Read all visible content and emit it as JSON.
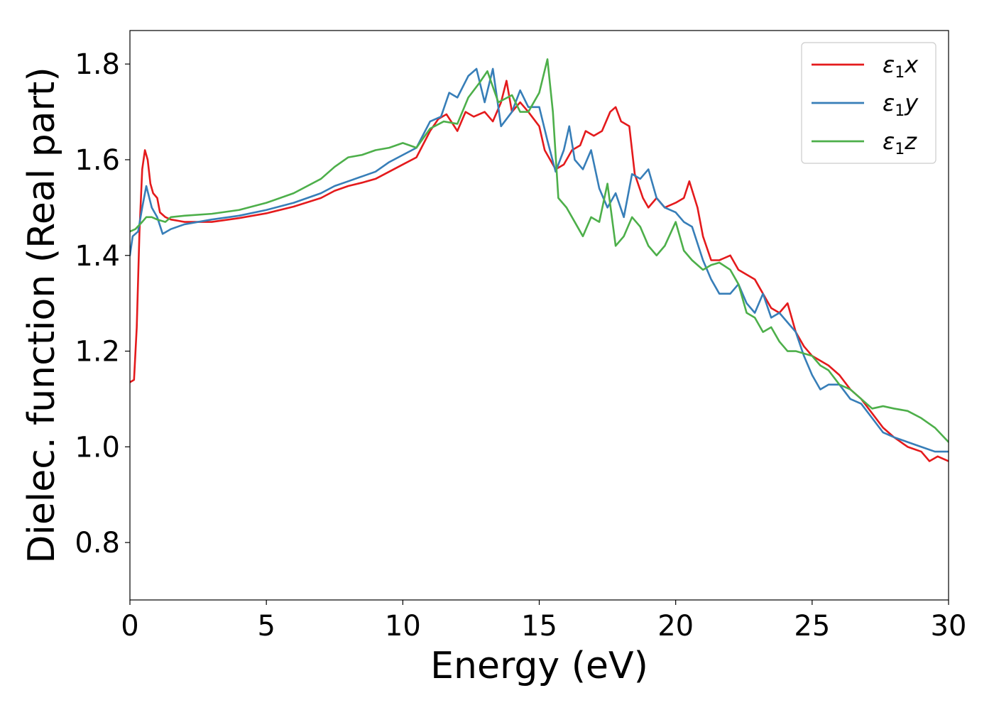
{
  "chart_data": {
    "type": "line",
    "xlabel": "Energy (eV)",
    "ylabel": "Dielec. function (Real part)",
    "xlim": [
      0,
      30
    ],
    "ylim": [
      0.68,
      1.87
    ],
    "xticks": [
      0,
      5,
      10,
      15,
      20,
      25,
      30
    ],
    "yticks": [
      0.8,
      1.0,
      1.2,
      1.4,
      1.6,
      1.8
    ],
    "xtick_labels": [
      "0",
      "5",
      "10",
      "15",
      "20",
      "25",
      "30"
    ],
    "ytick_labels": [
      "0.8",
      "1.0",
      "1.2",
      "1.4",
      "1.6",
      "1.8"
    ],
    "grid": false,
    "legend_position": "top-right",
    "series": [
      {
        "name": "ε1x",
        "legend_base": "ε",
        "legend_sub": "1",
        "legend_var": "x",
        "color": "#e41a1c",
        "points": [
          [
            0,
            1.135
          ],
          [
            0.15,
            1.14
          ],
          [
            0.25,
            1.25
          ],
          [
            0.35,
            1.45
          ],
          [
            0.45,
            1.58
          ],
          [
            0.55,
            1.62
          ],
          [
            0.65,
            1.6
          ],
          [
            0.75,
            1.55
          ],
          [
            0.85,
            1.53
          ],
          [
            1.0,
            1.52
          ],
          [
            1.1,
            1.49
          ],
          [
            1.3,
            1.48
          ],
          [
            1.5,
            1.475
          ],
          [
            2,
            1.47
          ],
          [
            3,
            1.47
          ],
          [
            4,
            1.478
          ],
          [
            5,
            1.488
          ],
          [
            6,
            1.502
          ],
          [
            7,
            1.52
          ],
          [
            7.5,
            1.535
          ],
          [
            8,
            1.545
          ],
          [
            8.5,
            1.552
          ],
          [
            9,
            1.56
          ],
          [
            9.5,
            1.575
          ],
          [
            10,
            1.59
          ],
          [
            10.5,
            1.605
          ],
          [
            11,
            1.66
          ],
          [
            11.3,
            1.685
          ],
          [
            11.6,
            1.695
          ],
          [
            12,
            1.66
          ],
          [
            12.3,
            1.7
          ],
          [
            12.6,
            1.69
          ],
          [
            13,
            1.7
          ],
          [
            13.3,
            1.68
          ],
          [
            13.6,
            1.72
          ],
          [
            13.8,
            1.765
          ],
          [
            14,
            1.7
          ],
          [
            14.3,
            1.72
          ],
          [
            14.6,
            1.7
          ],
          [
            15,
            1.67
          ],
          [
            15.2,
            1.62
          ],
          [
            15.4,
            1.6
          ],
          [
            15.6,
            1.58
          ],
          [
            15.9,
            1.59
          ],
          [
            16.2,
            1.62
          ],
          [
            16.5,
            1.63
          ],
          [
            16.7,
            1.66
          ],
          [
            17,
            1.65
          ],
          [
            17.3,
            1.66
          ],
          [
            17.6,
            1.7
          ],
          [
            17.8,
            1.71
          ],
          [
            18,
            1.68
          ],
          [
            18.3,
            1.67
          ],
          [
            18.5,
            1.57
          ],
          [
            18.8,
            1.52
          ],
          [
            19,
            1.5
          ],
          [
            19.3,
            1.52
          ],
          [
            19.6,
            1.5
          ],
          [
            20,
            1.51
          ],
          [
            20.3,
            1.52
          ],
          [
            20.5,
            1.555
          ],
          [
            20.8,
            1.5
          ],
          [
            21,
            1.44
          ],
          [
            21.3,
            1.39
          ],
          [
            21.6,
            1.39
          ],
          [
            22,
            1.4
          ],
          [
            22.3,
            1.37
          ],
          [
            22.6,
            1.36
          ],
          [
            22.9,
            1.35
          ],
          [
            23.2,
            1.32
          ],
          [
            23.5,
            1.29
          ],
          [
            23.8,
            1.28
          ],
          [
            24.1,
            1.3
          ],
          [
            24.4,
            1.24
          ],
          [
            24.7,
            1.21
          ],
          [
            25,
            1.19
          ],
          [
            25.3,
            1.18
          ],
          [
            25.6,
            1.17
          ],
          [
            26,
            1.15
          ],
          [
            26.4,
            1.12
          ],
          [
            26.8,
            1.1
          ],
          [
            27.2,
            1.07
          ],
          [
            27.6,
            1.04
          ],
          [
            28,
            1.02
          ],
          [
            28.5,
            1.0
          ],
          [
            29,
            0.99
          ],
          [
            29.3,
            0.97
          ],
          [
            29.6,
            0.98
          ],
          [
            30,
            0.97
          ]
        ]
      },
      {
        "name": "ε1y",
        "legend_base": "ε",
        "legend_sub": "1",
        "legend_var": "y",
        "color": "#377eb8",
        "points": [
          [
            0,
            1.4
          ],
          [
            0.1,
            1.44
          ],
          [
            0.3,
            1.45
          ],
          [
            0.45,
            1.5
          ],
          [
            0.6,
            1.545
          ],
          [
            0.8,
            1.5
          ],
          [
            1.0,
            1.48
          ],
          [
            1.2,
            1.445
          ],
          [
            1.5,
            1.455
          ],
          [
            2,
            1.465
          ],
          [
            3,
            1.475
          ],
          [
            4,
            1.483
          ],
          [
            5,
            1.495
          ],
          [
            6,
            1.51
          ],
          [
            7,
            1.53
          ],
          [
            7.5,
            1.545
          ],
          [
            8,
            1.555
          ],
          [
            8.5,
            1.565
          ],
          [
            9,
            1.575
          ],
          [
            9.5,
            1.595
          ],
          [
            10,
            1.61
          ],
          [
            10.5,
            1.625
          ],
          [
            11,
            1.68
          ],
          [
            11.4,
            1.69
          ],
          [
            11.7,
            1.74
          ],
          [
            12,
            1.73
          ],
          [
            12.4,
            1.775
          ],
          [
            12.7,
            1.79
          ],
          [
            13,
            1.72
          ],
          [
            13.3,
            1.79
          ],
          [
            13.6,
            1.67
          ],
          [
            14,
            1.7
          ],
          [
            14.3,
            1.745
          ],
          [
            14.6,
            1.71
          ],
          [
            15,
            1.71
          ],
          [
            15.3,
            1.64
          ],
          [
            15.6,
            1.575
          ],
          [
            15.9,
            1.62
          ],
          [
            16.1,
            1.67
          ],
          [
            16.3,
            1.6
          ],
          [
            16.6,
            1.58
          ],
          [
            16.9,
            1.62
          ],
          [
            17.2,
            1.54
          ],
          [
            17.5,
            1.5
          ],
          [
            17.8,
            1.53
          ],
          [
            18.1,
            1.48
          ],
          [
            18.4,
            1.57
          ],
          [
            18.7,
            1.56
          ],
          [
            19,
            1.58
          ],
          [
            19.3,
            1.52
          ],
          [
            19.6,
            1.5
          ],
          [
            20,
            1.49
          ],
          [
            20.3,
            1.47
          ],
          [
            20.6,
            1.46
          ],
          [
            21,
            1.39
          ],
          [
            21.3,
            1.35
          ],
          [
            21.6,
            1.32
          ],
          [
            22,
            1.32
          ],
          [
            22.3,
            1.34
          ],
          [
            22.6,
            1.3
          ],
          [
            22.9,
            1.28
          ],
          [
            23.2,
            1.32
          ],
          [
            23.5,
            1.27
          ],
          [
            23.8,
            1.28
          ],
          [
            24.1,
            1.26
          ],
          [
            24.4,
            1.24
          ],
          [
            24.7,
            1.19
          ],
          [
            25,
            1.15
          ],
          [
            25.3,
            1.12
          ],
          [
            25.6,
            1.13
          ],
          [
            26,
            1.13
          ],
          [
            26.4,
            1.1
          ],
          [
            26.8,
            1.09
          ],
          [
            27.2,
            1.06
          ],
          [
            27.6,
            1.03
          ],
          [
            28,
            1.02
          ],
          [
            28.5,
            1.01
          ],
          [
            29,
            1.0
          ],
          [
            29.5,
            0.99
          ],
          [
            30,
            0.99
          ]
        ]
      },
      {
        "name": "ε1z",
        "legend_base": "ε",
        "legend_sub": "1",
        "legend_var": "z",
        "color": "#4daf4a",
        "points": [
          [
            0,
            1.45
          ],
          [
            0.2,
            1.455
          ],
          [
            0.45,
            1.47
          ],
          [
            0.6,
            1.48
          ],
          [
            0.8,
            1.48
          ],
          [
            1.0,
            1.475
          ],
          [
            1.3,
            1.47
          ],
          [
            1.5,
            1.48
          ],
          [
            2,
            1.483
          ],
          [
            3,
            1.487
          ],
          [
            4,
            1.495
          ],
          [
            5,
            1.51
          ],
          [
            6,
            1.53
          ],
          [
            7,
            1.56
          ],
          [
            7.5,
            1.585
          ],
          [
            8,
            1.605
          ],
          [
            8.5,
            1.61
          ],
          [
            9,
            1.62
          ],
          [
            9.5,
            1.625
          ],
          [
            10,
            1.635
          ],
          [
            10.5,
            1.625
          ],
          [
            11,
            1.665
          ],
          [
            11.5,
            1.68
          ],
          [
            12,
            1.675
          ],
          [
            12.4,
            1.73
          ],
          [
            12.8,
            1.76
          ],
          [
            13.1,
            1.785
          ],
          [
            13.5,
            1.72
          ],
          [
            14,
            1.735
          ],
          [
            14.3,
            1.7
          ],
          [
            14.6,
            1.7
          ],
          [
            15,
            1.74
          ],
          [
            15.3,
            1.81
          ],
          [
            15.5,
            1.7
          ],
          [
            15.7,
            1.52
          ],
          [
            16,
            1.5
          ],
          [
            16.3,
            1.47
          ],
          [
            16.6,
            1.44
          ],
          [
            16.9,
            1.48
          ],
          [
            17.2,
            1.47
          ],
          [
            17.5,
            1.55
          ],
          [
            17.8,
            1.42
          ],
          [
            18.1,
            1.44
          ],
          [
            18.4,
            1.48
          ],
          [
            18.7,
            1.46
          ],
          [
            19,
            1.42
          ],
          [
            19.3,
            1.4
          ],
          [
            19.6,
            1.42
          ],
          [
            20,
            1.47
          ],
          [
            20.3,
            1.41
          ],
          [
            20.6,
            1.39
          ],
          [
            21,
            1.37
          ],
          [
            21.3,
            1.38
          ],
          [
            21.6,
            1.385
          ],
          [
            22,
            1.37
          ],
          [
            22.3,
            1.34
          ],
          [
            22.6,
            1.28
          ],
          [
            22.9,
            1.27
          ],
          [
            23.2,
            1.24
          ],
          [
            23.5,
            1.25
          ],
          [
            23.8,
            1.22
          ],
          [
            24.1,
            1.2
          ],
          [
            24.4,
            1.2
          ],
          [
            24.7,
            1.195
          ],
          [
            25,
            1.19
          ],
          [
            25.3,
            1.17
          ],
          [
            25.6,
            1.16
          ],
          [
            26,
            1.13
          ],
          [
            26.4,
            1.12
          ],
          [
            26.8,
            1.1
          ],
          [
            27.2,
            1.08
          ],
          [
            27.6,
            1.085
          ],
          [
            28,
            1.08
          ],
          [
            28.5,
            1.075
          ],
          [
            29,
            1.06
          ],
          [
            29.5,
            1.04
          ],
          [
            30,
            1.01
          ]
        ]
      }
    ]
  }
}
